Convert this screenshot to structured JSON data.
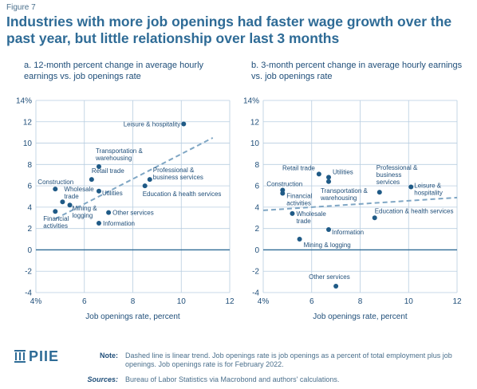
{
  "figure_label": "Figure 7",
  "title": "Industries with more job openings had faster wage growth over the past year, but little relationship over last 3 months",
  "logo_text": "PIIE",
  "note_label": "Note:",
  "note_text": "Dashed line is linear trend. Job openings rate is job openings as a percent of total employment plus job openings. Job openings rate is for February 2022.",
  "sources_label": "Sources:",
  "sources_text": "Bureau of Labor Statistics via Macrobond and authors' calculations.",
  "colors": {
    "point": "#1f5a86",
    "trend": "#7fa6c4",
    "grid": "#b8cde0",
    "zero": "#2e6b96",
    "text": "#1f4e79"
  },
  "chart_data": [
    {
      "type": "scatter",
      "title": "a. 12-month percent change in average hourly earnings vs. job openings rate",
      "xlabel": "Job openings rate, percent",
      "ylabel": "",
      "xlim": [
        4,
        12
      ],
      "ylim": [
        -4,
        14
      ],
      "x_ticks": [
        "4%",
        "6",
        "8",
        "10",
        "12"
      ],
      "y_ticks": [
        "-4",
        "-2",
        "0",
        "2",
        "4",
        "6",
        "8",
        "10",
        "12",
        "14%"
      ],
      "trend": {
        "x1": 4.8,
        "y1": 2.9,
        "x2": 11.3,
        "y2": 10.5
      },
      "points": [
        {
          "label": "Leisure & hospitality",
          "x": 10.1,
          "y": 11.8
        },
        {
          "label": "Transportation & warehousing",
          "x": 6.6,
          "y": 7.8
        },
        {
          "label": "Retail trade",
          "x": 6.3,
          "y": 6.6
        },
        {
          "label": "Professional & business services",
          "x": 8.7,
          "y": 6.6
        },
        {
          "label": "Education & health services",
          "x": 8.5,
          "y": 6.0
        },
        {
          "label": "Construction",
          "x": 4.8,
          "y": 5.7
        },
        {
          "label": "Wholesale trade",
          "x": 5.1,
          "y": 4.5
        },
        {
          "label": "Utilities",
          "x": 6.6,
          "y": 5.5
        },
        {
          "label": "Mining & logging",
          "x": 5.4,
          "y": 4.2
        },
        {
          "label": "Financial activities",
          "x": 4.8,
          "y": 3.6
        },
        {
          "label": "Other services",
          "x": 7.0,
          "y": 3.5
        },
        {
          "label": "Information",
          "x": 6.6,
          "y": 2.5
        }
      ]
    },
    {
      "type": "scatter",
      "title": "b. 3-month percent change in average hourly earnings vs. job openings rate",
      "xlabel": "Job openings rate, percent",
      "ylabel": "",
      "xlim": [
        4,
        12
      ],
      "ylim": [
        -4,
        14
      ],
      "x_ticks": [
        "4%",
        "6",
        "8",
        "10",
        "12"
      ],
      "y_ticks": [
        "-4",
        "-2",
        "0",
        "2",
        "4",
        "6",
        "8",
        "10",
        "12",
        "14%"
      ],
      "trend": {
        "x1": 4.0,
        "y1": 3.7,
        "x2": 12.0,
        "y2": 4.9
      },
      "points": [
        {
          "label": "Retail trade",
          "x": 6.3,
          "y": 7.1
        },
        {
          "label": "Utilities",
          "x": 6.7,
          "y": 6.8
        },
        {
          "label": "Transportation & warehousing",
          "x": 6.7,
          "y": 6.4
        },
        {
          "label": "Professional & business services",
          "x": 8.8,
          "y": 5.4
        },
        {
          "label": "Leisure & hospitality",
          "x": 10.1,
          "y": 5.9
        },
        {
          "label": "Construction",
          "x": 4.8,
          "y": 5.6
        },
        {
          "label": "Financial activities",
          "x": 4.8,
          "y": 5.3
        },
        {
          "label": "Wholesale trade",
          "x": 5.2,
          "y": 3.4
        },
        {
          "label": "Education & health services",
          "x": 8.6,
          "y": 3.0
        },
        {
          "label": "Information",
          "x": 6.7,
          "y": 1.9
        },
        {
          "label": "Mining & logging",
          "x": 5.5,
          "y": 1.0
        },
        {
          "label": "Other services",
          "x": 7.0,
          "y": -3.4
        }
      ]
    }
  ]
}
